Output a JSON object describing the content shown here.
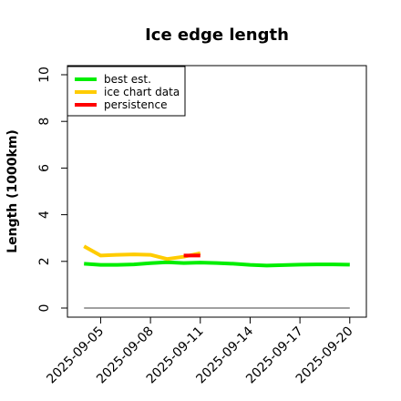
{
  "chart_data": {
    "type": "line",
    "title": "Ice edge length",
    "xlabel": "",
    "ylabel": "Length (1000km)",
    "ylim": [
      0,
      10
    ],
    "xlim": [
      "2025-09-03",
      "2025-09-21"
    ],
    "x_ticks": [
      "2025-09-05",
      "2025-09-08",
      "2025-09-11",
      "2025-09-14",
      "2025-09-17",
      "2025-09-20"
    ],
    "y_ticks": [
      0,
      2,
      4,
      6,
      8,
      10
    ],
    "grid": false,
    "legend_position": "top-left",
    "baseline": {
      "y": 0,
      "x_start": "2025-09-04",
      "x_end": "2025-09-20",
      "color": "#808080"
    },
    "series": [
      {
        "name": "best est.",
        "color": "#00ee00",
        "x": [
          "2025-09-04",
          "2025-09-05",
          "2025-09-06",
          "2025-09-07",
          "2025-09-08",
          "2025-09-09",
          "2025-09-10",
          "2025-09-11",
          "2025-09-12",
          "2025-09-13",
          "2025-09-14",
          "2025-09-15",
          "2025-09-16",
          "2025-09-17",
          "2025-09-18",
          "2025-09-19",
          "2025-09-20"
        ],
        "y": [
          1.9,
          1.85,
          1.85,
          1.87,
          1.92,
          1.96,
          1.93,
          1.95,
          1.93,
          1.9,
          1.85,
          1.82,
          1.84,
          1.86,
          1.87,
          1.87,
          1.86
        ]
      },
      {
        "name": "ice chart data",
        "color": "#ffcc00",
        "x": [
          "2025-09-04",
          "2025-09-05",
          "2025-09-06",
          "2025-09-07",
          "2025-09-08",
          "2025-09-09",
          "2025-09-10",
          "2025-09-11"
        ],
        "y": [
          2.65,
          2.25,
          2.28,
          2.3,
          2.28,
          2.1,
          2.2,
          2.35
        ]
      },
      {
        "name": "persistence",
        "color": "#ff0000",
        "x": [
          "2025-09-10",
          "2025-09-11"
        ],
        "y": [
          2.25,
          2.25
        ]
      }
    ]
  }
}
